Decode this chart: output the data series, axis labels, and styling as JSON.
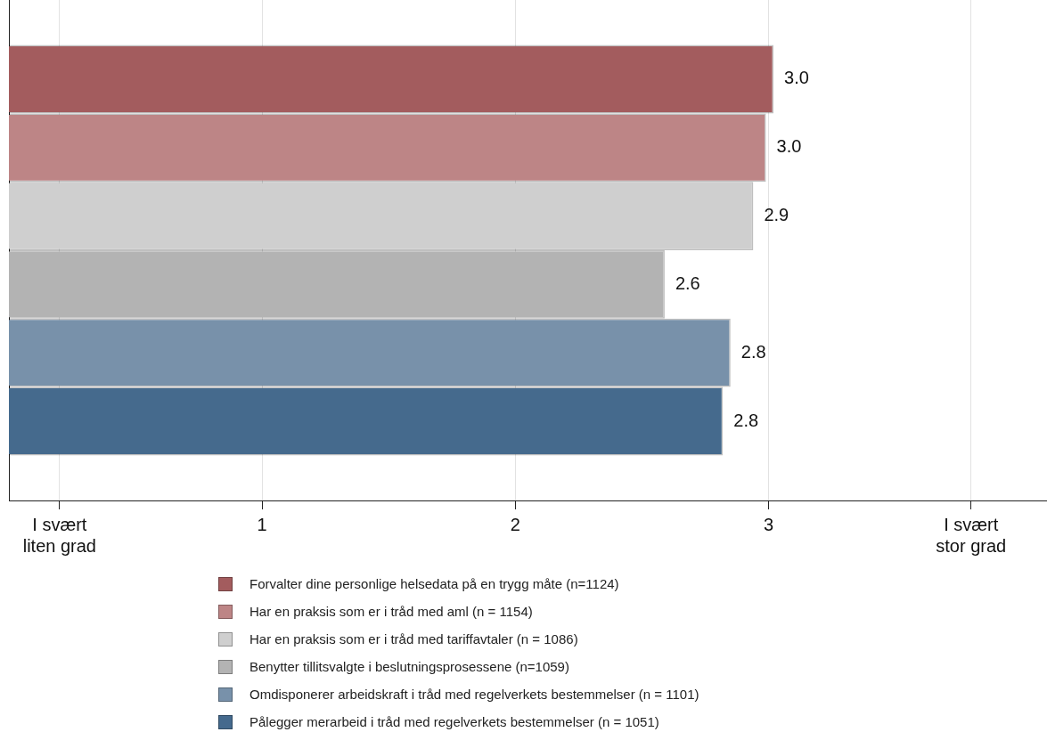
{
  "chart_data": {
    "type": "bar",
    "orientation": "horizontal",
    "categories": [
      null
    ],
    "series": [
      {
        "name": "Forvalter dine personlige helsedata på en trygg måte (n=1124)",
        "color": "#a35c5e",
        "values": [
          3.02
        ],
        "value_labels": [
          "3.0"
        ]
      },
      {
        "name": "Har en praksis som er i tråd med aml (n = 1154)",
        "color": "#bd8586",
        "values": [
          2.99
        ],
        "value_labels": [
          "3.0"
        ]
      },
      {
        "name": "Har en praksis som er i tråd med tariffavtaler (n = 1086)",
        "color": "#cfcfcf",
        "values": [
          2.94
        ],
        "value_labels": [
          "2.9"
        ]
      },
      {
        "name": "Benytter tillitsvalgte i beslutningsprosessene (n=1059)",
        "color": "#b3b3b3",
        "values": [
          2.59
        ],
        "value_labels": [
          "2.6"
        ]
      },
      {
        "name": "Omdisponerer arbeidskraft i tråd med regelverkets bestemmelser (n = 1101)",
        "color": "#7891aa",
        "values": [
          2.85
        ],
        "value_labels": [
          "2.8"
        ]
      },
      {
        "name": "Pålegger merarbeid i tråd med regelverkets bestemmelser (n = 1051)",
        "color": "#456a8d",
        "values": [
          2.82
        ],
        "value_labels": [
          "2.8"
        ]
      }
    ],
    "xlim": [
      0,
      4.1
    ],
    "xticks": [
      {
        "value": 0.2,
        "label": "I svært liten grad"
      },
      1,
      2,
      3,
      {
        "value": 3.8,
        "label": "I svært stor grad"
      }
    ],
    "grid": "x",
    "legend": "bottom",
    "tick_labels": "x"
  }
}
